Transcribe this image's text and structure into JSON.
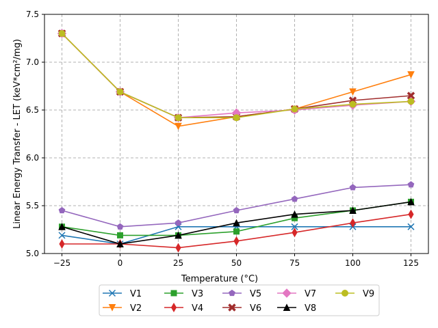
{
  "chart_data": {
    "type": "line",
    "title": "",
    "xlabel": "Temperature (°C)",
    "ylabel": "Linear Energy Transfer - LET (keV*cm²/mg)",
    "x": [
      -25,
      0,
      25,
      50,
      75,
      100,
      125
    ],
    "xlim": [
      -32.5,
      132.5
    ],
    "ylim": [
      5.0,
      7.5
    ],
    "xticks": [
      "−25",
      "0",
      "25",
      "50",
      "75",
      "100",
      "125"
    ],
    "yticks": [
      "5.0",
      "5.5",
      "6.0",
      "6.5",
      "7.0",
      "7.5"
    ],
    "grid": true,
    "legend_position": "bottom-center",
    "series": [
      {
        "name": "V1",
        "color": "#1f77b4",
        "marker": "x",
        "values": [
          5.19,
          5.1,
          5.28,
          5.28,
          5.28,
          5.28,
          5.28
        ]
      },
      {
        "name": "V2",
        "color": "#ff7f0e",
        "marker": "tri-down",
        "values": [
          7.3,
          6.69,
          6.33,
          6.43,
          6.51,
          6.69,
          6.87
        ]
      },
      {
        "name": "V3",
        "color": "#2ca02c",
        "marker": "square",
        "values": [
          5.28,
          5.19,
          5.19,
          5.23,
          5.37,
          5.45,
          5.54
        ]
      },
      {
        "name": "V4",
        "color": "#d62728",
        "marker": "thin-diamond",
        "values": [
          5.1,
          5.1,
          5.06,
          5.13,
          5.22,
          5.32,
          5.41
        ]
      },
      {
        "name": "V5",
        "color": "#9467bd",
        "marker": "pentagon",
        "values": [
          5.45,
          5.28,
          5.32,
          5.45,
          5.57,
          5.69,
          5.72
        ]
      },
      {
        "name": "V6",
        "color": "#a02c2c",
        "marker": "filled-x",
        "values": [
          7.3,
          6.69,
          6.42,
          6.43,
          6.51,
          6.6,
          6.65
        ]
      },
      {
        "name": "V7",
        "color": "#e377c2",
        "marker": "diamond",
        "values": [
          7.3,
          6.69,
          6.42,
          6.47,
          6.5,
          6.55,
          6.59
        ]
      },
      {
        "name": "V8",
        "color": "#000000",
        "marker": "tri-up",
        "values": [
          5.28,
          5.1,
          5.19,
          5.32,
          5.41,
          5.45,
          5.54
        ]
      },
      {
        "name": "V9",
        "color": "#bcbd22",
        "marker": "circle",
        "values": [
          7.3,
          6.69,
          6.42,
          6.42,
          6.51,
          6.56,
          6.59
        ]
      }
    ]
  }
}
